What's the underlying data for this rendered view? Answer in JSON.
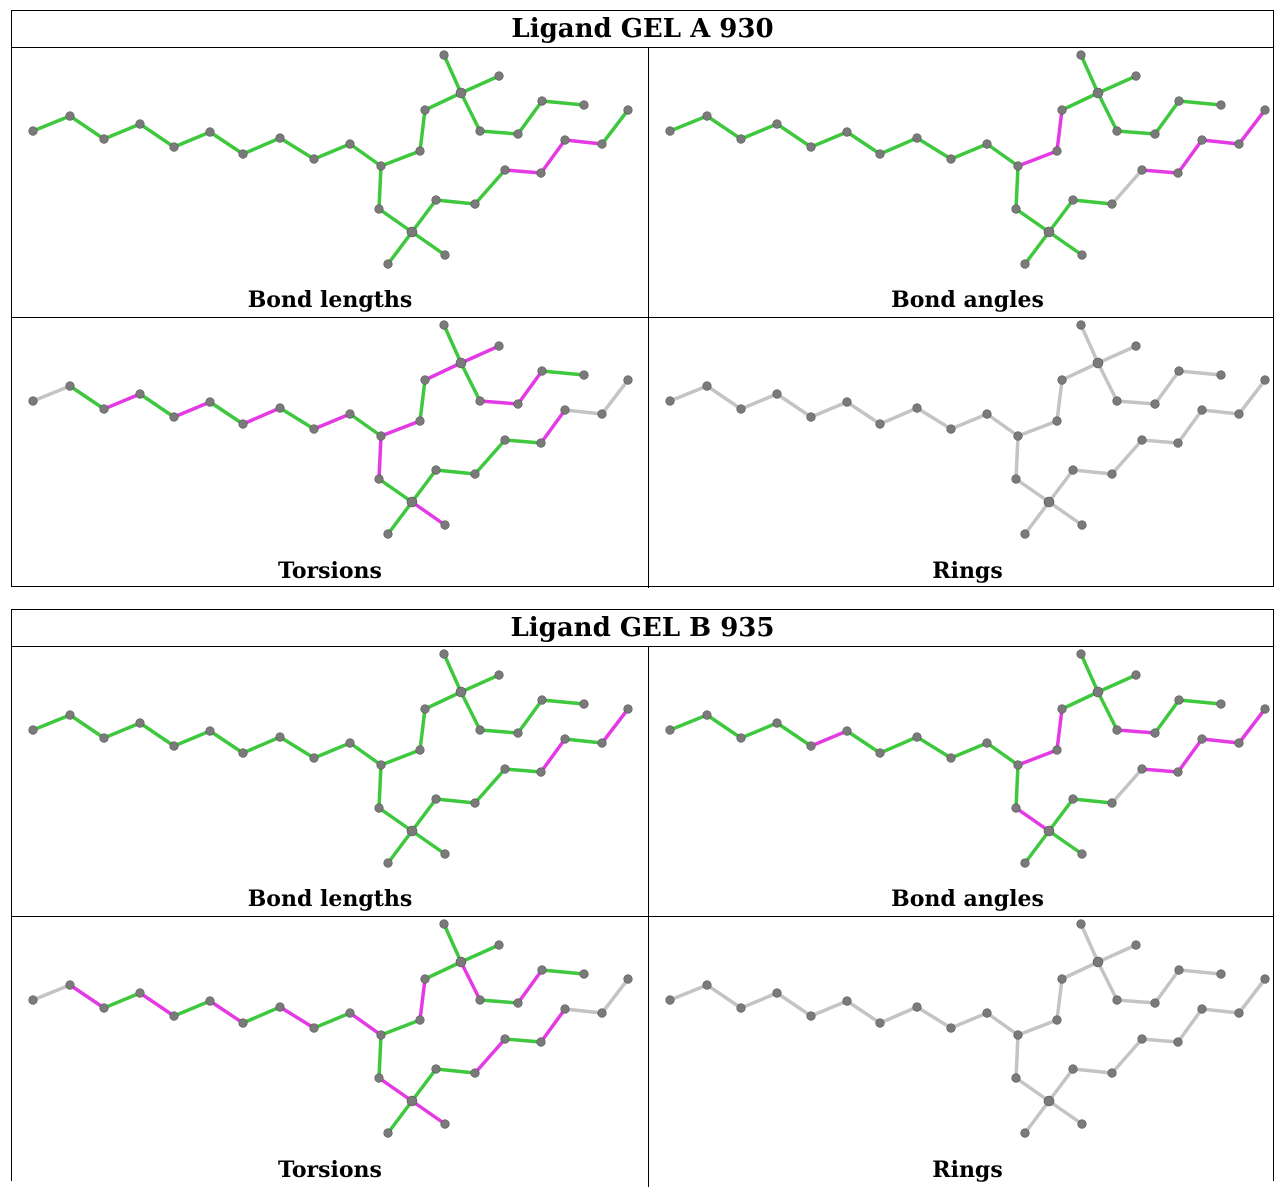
{
  "tables": [
    {
      "title": "Ligand GEL A 930",
      "panels": [
        {
          "label": "Bond lengths",
          "bonds": "GGGGGGGGGGGGGGGGGGGGGGGGGGMMMG"
        },
        {
          "label": "Bond angles",
          "bonds": "GGGGGGGGGGMMGGGGGGGGGGGGGSMMMM"
        },
        {
          "label": "Torsions",
          "bonds": "SGMGMGMGMGMGMGMGMMGMGGMGGGGMSS"
        },
        {
          "label": "Rings",
          "bonds": "SSSSSSSSSSSSSSSSSSSSSSSSSSSSSS"
        }
      ]
    },
    {
      "title": "Ligand GEL B 935",
      "panels": [
        {
          "label": "Bond lengths",
          "bonds": "GGGGGGGGGGGGGGGGGGGGGGGGGGGMGM"
        },
        {
          "label": "Bond angles",
          "bonds": "GGGGMGGGGGMMGGGGMGGGMGGGGSMMMM"
        },
        {
          "label": "Torsions",
          "bonds": "SMGMGMGMGMGMGGGMGMGGMGMGGMGMSS"
        },
        {
          "label": "Rings",
          "bonds": "SSSSSSSSSSSSSSSSSSSSSSSSSSSSSS"
        }
      ]
    }
  ],
  "bond_colors": {
    "G": "#3ec83e",
    "M": "#e43ae4",
    "S": "#c4c4c4"
  },
  "atom_color": "#7a7a7a"
}
